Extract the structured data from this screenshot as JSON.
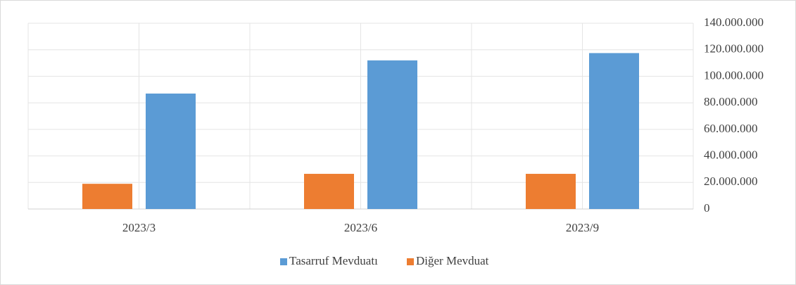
{
  "chart_data": {
    "type": "bar",
    "categories": [
      "2023/3",
      "2023/6",
      "2023/9"
    ],
    "series": [
      {
        "name": "Tasarruf Mevduatı",
        "color": "#5b9bd5",
        "values": [
          87000000,
          112000000,
          117500000
        ]
      },
      {
        "name": "Diğer Mevduat",
        "color": "#ed7d31",
        "values": [
          19000000,
          26500000,
          26500000
        ]
      }
    ],
    "ylim": [
      0,
      140000000
    ],
    "yticks": [
      0,
      {
        "value": 20000000,
        "label": "20.000.000"
      },
      {
        "value": 40000000,
        "label": "40.000.000"
      },
      {
        "value": 60000000,
        "label": "60.000.000"
      },
      {
        "value": 80000000,
        "label": "80.000.000"
      },
      {
        "value": 100000000,
        "label": "100.000.000"
      },
      {
        "value": 120000000,
        "label": "120.000.000"
      },
      {
        "value": 140000000,
        "label": "140.000.000"
      }
    ],
    "grid": true,
    "yaxis_side": "right",
    "legend": "bottom"
  }
}
